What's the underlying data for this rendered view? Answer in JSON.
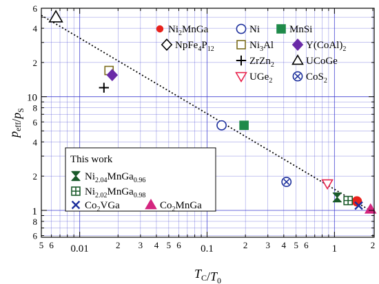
{
  "chart_data": {
    "type": "scatter",
    "xscale": "log",
    "yscale": "log",
    "xlim": [
      0.005,
      2.05
    ],
    "ylim": [
      0.58,
      60
    ],
    "grid": true,
    "xlabel": "T_C/T_0",
    "ylabel": "p_eff/p_S",
    "x_major_ticks": [
      {
        "value": 0.01,
        "label": "0.01"
      },
      {
        "value": 0.1,
        "label": "0.1"
      },
      {
        "value": 1,
        "label": "1"
      }
    ],
    "x_minor_ticks": [
      {
        "value": 0.005,
        "label": "5"
      },
      {
        "value": 0.006,
        "label": "6"
      },
      {
        "value": 0.02,
        "label": "2"
      },
      {
        "value": 0.03,
        "label": "3"
      },
      {
        "value": 0.04,
        "label": "4"
      },
      {
        "value": 0.05,
        "label": "5"
      },
      {
        "value": 0.06,
        "label": "6"
      },
      {
        "value": 0.2,
        "label": "2"
      },
      {
        "value": 0.3,
        "label": "3"
      },
      {
        "value": 0.4,
        "label": "4"
      },
      {
        "value": 0.5,
        "label": "5"
      },
      {
        "value": 0.6,
        "label": "6"
      },
      {
        "value": 2,
        "label": "2"
      }
    ],
    "x_unlabeled_minor": [
      0.007,
      0.008,
      0.009,
      0.07,
      0.08,
      0.09,
      0.7,
      0.8,
      0.9
    ],
    "y_major_ticks": [
      {
        "value": 1,
        "label": "1"
      },
      {
        "value": 10,
        "label": "10"
      }
    ],
    "y_minor_ticks": [
      {
        "value": 0.6,
        "label": "6"
      },
      {
        "value": 0.8,
        "label": "8"
      },
      {
        "value": 2,
        "label": "2"
      },
      {
        "value": 4,
        "label": "4"
      },
      {
        "value": 6,
        "label": "6"
      },
      {
        "value": 8,
        "label": "8"
      },
      {
        "value": 20,
        "label": "2"
      },
      {
        "value": 40,
        "label": "4"
      },
      {
        "value": 60,
        "label": "6"
      }
    ],
    "y_unlabeled_minor": [
      0.7,
      0.9,
      3,
      5,
      7,
      9,
      30,
      50
    ],
    "trend_line": {
      "style": "dotted",
      "points": [
        [
          0.005,
          52
        ],
        [
          1.9,
          1.0
        ]
      ]
    },
    "series": [
      {
        "name": "Ni2MnGa",
        "marker": "circle",
        "filled": true,
        "color": "#e8221c",
        "points": [
          [
            1.5,
            1.2
          ]
        ]
      },
      {
        "name": "NpFe4P12",
        "marker": "diamond",
        "filled": false,
        "color": "#000000",
        "points": []
      },
      {
        "name": "Ni",
        "marker": "circle",
        "filled": false,
        "color": "#1c2f9c",
        "points": [
          [
            0.13,
            5.6
          ]
        ]
      },
      {
        "name": "MnSi",
        "marker": "square",
        "filled": true,
        "color": "#1f8a4a",
        "points": [
          [
            0.195,
            5.6
          ]
        ]
      },
      {
        "name": "Ni3Al",
        "marker": "square",
        "filled": false,
        "color": "#7a6a1a",
        "points": [
          [
            0.017,
            17
          ]
        ]
      },
      {
        "name": "Y(CoAl)2",
        "marker": "diamond",
        "filled": true,
        "color": "#6a2aa8",
        "points": [
          [
            0.018,
            15.5
          ]
        ]
      },
      {
        "name": "ZrZn2",
        "marker": "plus",
        "filled": false,
        "color": "#000000",
        "points": [
          [
            0.0155,
            12
          ]
        ]
      },
      {
        "name": "UCoGe",
        "marker": "triangle-up",
        "filled": false,
        "color": "#000000",
        "points": [
          [
            0.0065,
            50
          ]
        ]
      },
      {
        "name": "UGe2",
        "marker": "triangle-down",
        "filled": false,
        "color": "#e8224c",
        "points": [
          [
            0.88,
            1.72
          ]
        ]
      },
      {
        "name": "CoS2",
        "marker": "circle-x",
        "filled": false,
        "color": "#1c2f9c",
        "points": [
          [
            0.42,
            1.78
          ]
        ]
      },
      {
        "name": "Ni2.04MnGa0.96",
        "marker": "hourglass",
        "filled": true,
        "color": "#1a5a2a",
        "points": [
          [
            1.05,
            1.3
          ]
        ]
      },
      {
        "name": "Ni2.02MnGa0.98",
        "marker": "square-plus",
        "filled": false,
        "color": "#1a5a2a",
        "points": [
          [
            1.28,
            1.22
          ]
        ]
      },
      {
        "name": "Co2VGa",
        "marker": "x",
        "filled": false,
        "color": "#1c2f9c",
        "points": [
          [
            1.55,
            1.1
          ]
        ]
      },
      {
        "name": "Co2MnGa",
        "marker": "triangle-up",
        "filled": true,
        "color": "#d4257f",
        "points": [
          [
            1.92,
            1.02
          ]
        ]
      }
    ],
    "legend": {
      "placement": "upper-right",
      "this_work_title": "This work",
      "this_work_placement": "lower-left"
    }
  },
  "colors": {
    "grid": "#3c3cd0",
    "axis": "#000000"
  }
}
